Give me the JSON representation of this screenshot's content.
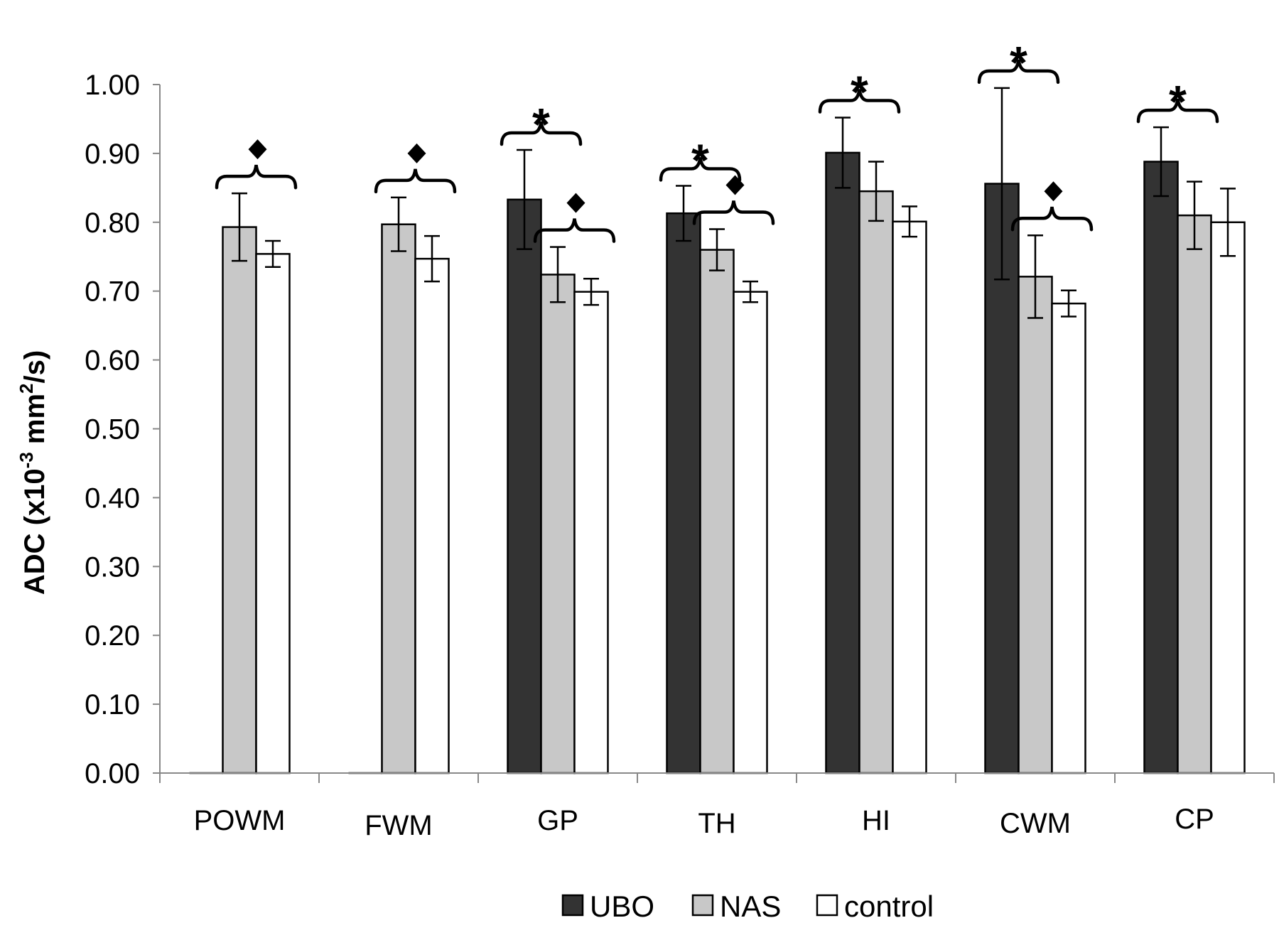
{
  "chart_data": {
    "type": "bar",
    "title": "",
    "xlabel": "",
    "ylabel": "ADC (x10",
    "ylabel_sup1": "-3",
    "ylabel_mid": " mm",
    "ylabel_sup2": "2",
    "ylabel_end": "/s)",
    "ylim": [
      0,
      1.0
    ],
    "yticks": [
      "0.00",
      "0.10",
      "0.20",
      "0.30",
      "0.40",
      "0.50",
      "0.60",
      "0.70",
      "0.80",
      "0.90",
      "1.00"
    ],
    "grid": false,
    "legend_position": "bottom",
    "categories": [
      "POWM",
      "FWM",
      "GP",
      "TH",
      "HI",
      "CWM",
      "CP"
    ],
    "series": [
      {
        "name": "UBO",
        "color": "#333333",
        "values": [
          0.0,
          0.0,
          0.833,
          0.813,
          0.901,
          0.856,
          0.888
        ],
        "errors": [
          null,
          null,
          0.072,
          0.04,
          0.051,
          0.139,
          0.05
        ]
      },
      {
        "name": "NAS",
        "color": "#c8c8c8",
        "values": [
          0.793,
          0.797,
          0.724,
          0.76,
          0.845,
          0.721,
          0.81
        ],
        "errors": [
          0.049,
          0.039,
          0.04,
          0.03,
          0.043,
          0.06,
          0.049
        ]
      },
      {
        "name": "control",
        "color": "#ffffff",
        "values": [
          0.754,
          0.747,
          0.699,
          0.699,
          0.801,
          0.682,
          0.8
        ],
        "errors": [
          0.019,
          0.033,
          0.019,
          0.015,
          0.022,
          0.019,
          0.049
        ]
      }
    ],
    "annotations": [
      {
        "symbol": "◆",
        "category": 0,
        "from_series": 1,
        "to_series": 2
      },
      {
        "symbol": "◆",
        "category": 1,
        "from_series": 1,
        "to_series": 2
      },
      {
        "symbol": "*",
        "category": 2,
        "from_series": 0,
        "to_series": 1
      },
      {
        "symbol": "◆",
        "category": 2,
        "from_series": 1,
        "to_series": 2
      },
      {
        "symbol": "*",
        "category": 3,
        "from_series": 0,
        "to_series": 1
      },
      {
        "symbol": "◆",
        "category": 3,
        "from_series": 1,
        "to_series": 2
      },
      {
        "symbol": "*",
        "category": 4,
        "from_series": 0,
        "to_series": 1
      },
      {
        "symbol": "*",
        "category": 5,
        "from_series": 0,
        "to_series": 1
      },
      {
        "symbol": "◆",
        "category": 5,
        "from_series": 1,
        "to_series": 2
      },
      {
        "symbol": "*",
        "category": 6,
        "from_series": 0,
        "to_series": 1
      }
    ]
  }
}
